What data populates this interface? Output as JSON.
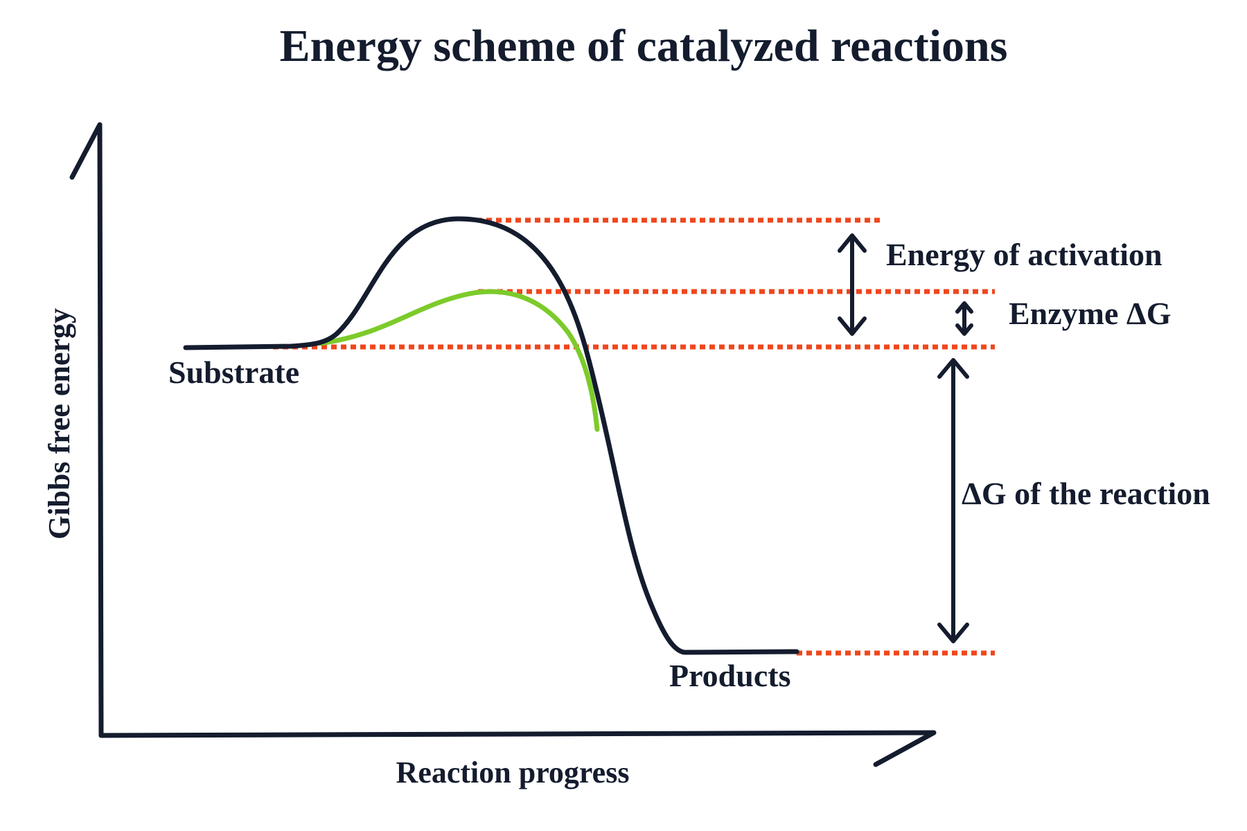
{
  "title": "Energy scheme of catalyzed reactions",
  "axes": {
    "x_label": "Reaction progress",
    "y_label": "Gibbs free energy"
  },
  "states": {
    "substrate": "Substrate",
    "products": "Products"
  },
  "annotations": {
    "activation_energy": "Energy of activation",
    "enzyme_delta_g": "Enzyme ΔG",
    "reaction_delta_g": "ΔG of the reaction"
  },
  "colors": {
    "ink": "#141c2e",
    "catalyzed_curve": "#7ccb2a",
    "reference_lines": "#f0461c"
  }
}
